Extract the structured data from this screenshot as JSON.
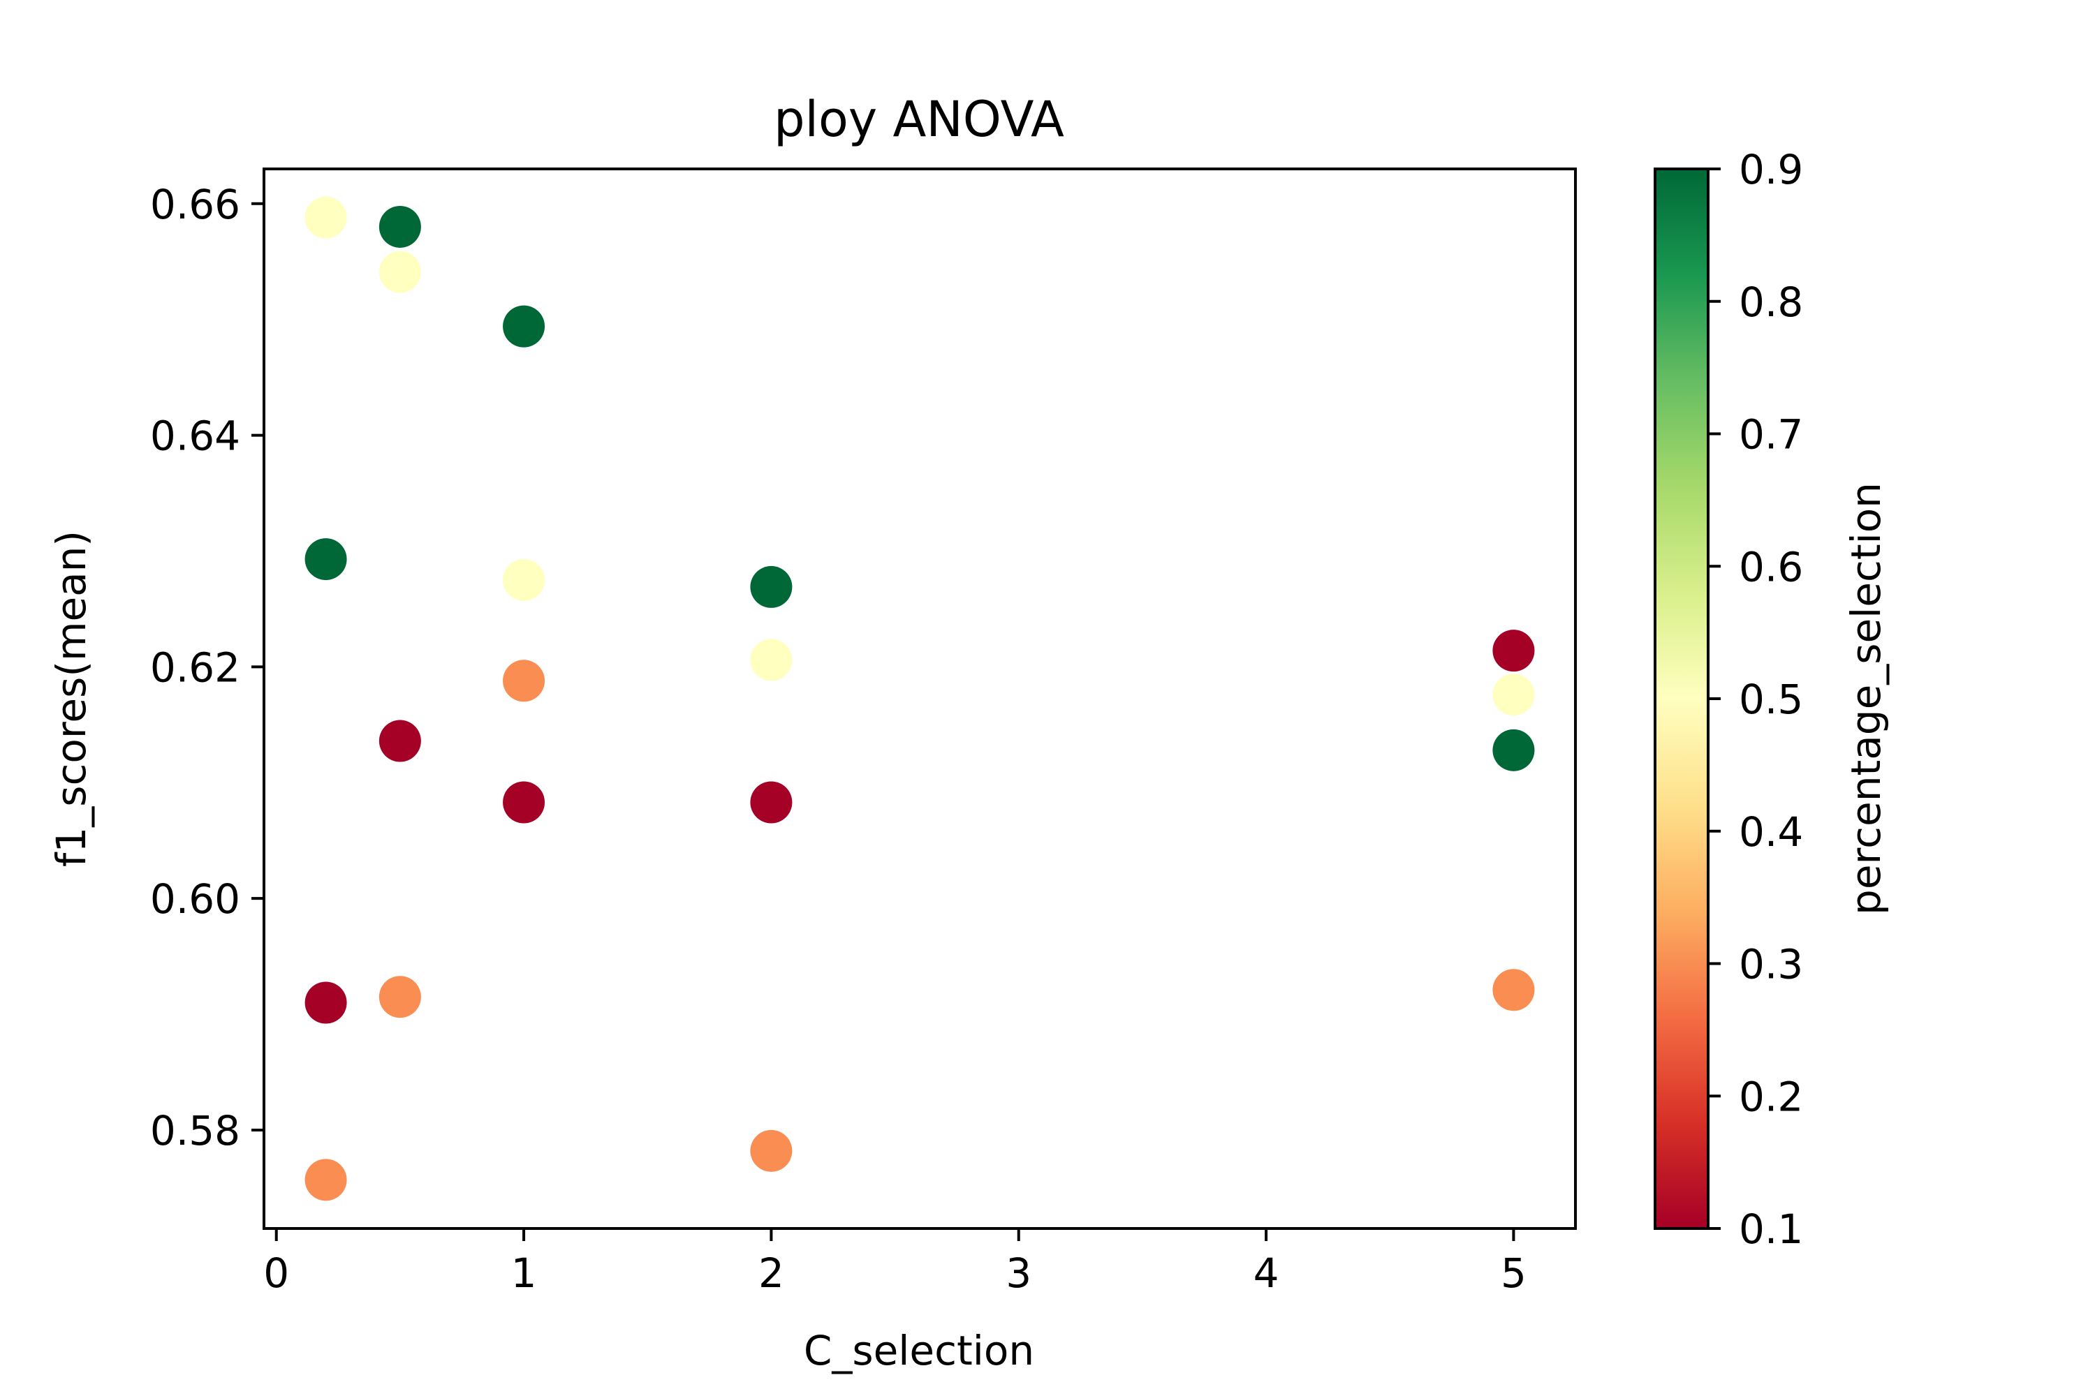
{
  "chart_data": {
    "type": "scatter",
    "title": "ploy ANOVA",
    "xlabel": "C_selection",
    "ylabel": "f1_scores(mean)",
    "colorbar_label": "percentage_selection",
    "colormap": "RdYlGn",
    "xlim": [
      -0.05,
      5.25
    ],
    "ylim": [
      0.5715,
      0.663
    ],
    "x_ticks": [
      0,
      1,
      2,
      3,
      4,
      5
    ],
    "y_ticks": [
      0.58,
      0.6,
      0.62,
      0.64,
      0.66
    ],
    "y_tick_labels": [
      "0.58",
      "0.60",
      "0.62",
      "0.64",
      "0.66"
    ],
    "color_range": [
      0.1,
      0.9
    ],
    "colorbar_ticks": [
      0.1,
      0.2,
      0.3,
      0.4,
      0.5,
      0.6,
      0.7,
      0.8,
      0.9
    ],
    "colorbar_tick_labels": [
      "0.1",
      "0.2",
      "0.3",
      "0.4",
      "0.5",
      "0.6",
      "0.7",
      "0.8",
      "0.9"
    ],
    "grid": false,
    "points": [
      {
        "x": 0.2,
        "y": 0.6588,
        "c": 0.5
      },
      {
        "x": 0.2,
        "y": 0.6293,
        "c": 0.9
      },
      {
        "x": 0.2,
        "y": 0.591,
        "c": 0.1
      },
      {
        "x": 0.2,
        "y": 0.5757,
        "c": 0.3
      },
      {
        "x": 0.5,
        "y": 0.658,
        "c": 0.9
      },
      {
        "x": 0.5,
        "y": 0.6541,
        "c": 0.5
      },
      {
        "x": 0.5,
        "y": 0.6136,
        "c": 0.1
      },
      {
        "x": 0.5,
        "y": 0.5915,
        "c": 0.3
      },
      {
        "x": 1.0,
        "y": 0.6494,
        "c": 0.9
      },
      {
        "x": 1.0,
        "y": 0.6275,
        "c": 0.5
      },
      {
        "x": 1.0,
        "y": 0.6188,
        "c": 0.3
      },
      {
        "x": 1.0,
        "y": 0.6083,
        "c": 0.1
      },
      {
        "x": 2.0,
        "y": 0.6269,
        "c": 0.9
      },
      {
        "x": 2.0,
        "y": 0.6206,
        "c": 0.5
      },
      {
        "x": 2.0,
        "y": 0.6083,
        "c": 0.1
      },
      {
        "x": 2.0,
        "y": 0.5782,
        "c": 0.3
      },
      {
        "x": 5.0,
        "y": 0.6214,
        "c": 0.1
      },
      {
        "x": 5.0,
        "y": 0.6176,
        "c": 0.5
      },
      {
        "x": 5.0,
        "y": 0.6128,
        "c": 0.9
      },
      {
        "x": 5.0,
        "y": 0.5921,
        "c": 0.3
      }
    ]
  }
}
